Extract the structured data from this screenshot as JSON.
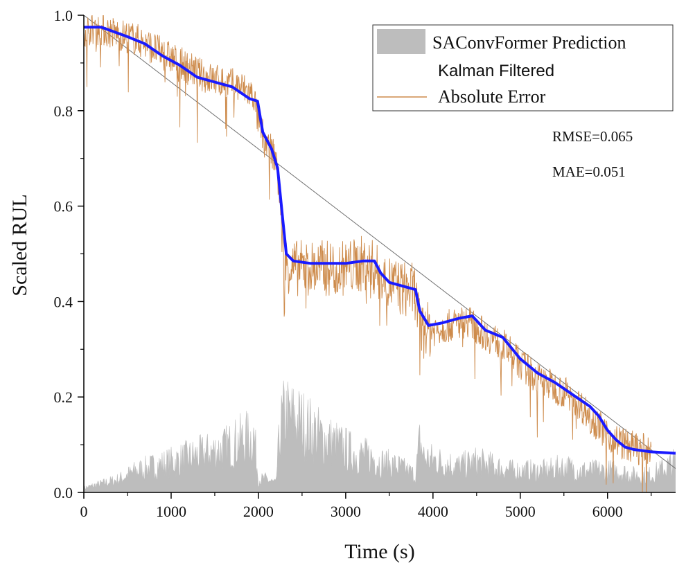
{
  "chart_data": {
    "type": "line",
    "xlabel": "Time (s)",
    "ylabel": "Scaled RUL",
    "xlim": [
      0,
      6780
    ],
    "ylim": [
      0,
      1.0
    ],
    "x_ticks": [
      0,
      1000,
      2000,
      3000,
      4000,
      5000,
      6000
    ],
    "y_ticks": [
      0.0,
      0.2,
      0.4,
      0.6,
      0.8,
      1.0
    ],
    "legend_position": "top-right",
    "colors": {
      "prediction": "#cd8a4a",
      "kalman": "#1a1aff",
      "error": "#bdbdbd",
      "reference": "#707070"
    },
    "annotations": [
      "RMSE=0.065",
      "MAE=0.051"
    ],
    "series": [
      {
        "name": "SAConvFormer Prediction",
        "style": "area",
        "x": [
          0,
          200,
          400,
          600,
          800,
          1000,
          1200,
          1400,
          1600,
          1800,
          1950,
          2000,
          2100,
          2200,
          2250,
          2300,
          2500,
          2700,
          2900,
          3100,
          3300,
          3400,
          3600,
          3800,
          3850,
          3900,
          4100,
          4300,
          4500,
          4700,
          4900,
          5100,
          5300,
          5500,
          5700,
          5900,
          6100,
          6300,
          6500,
          6780
        ],
        "values": [
          0.01,
          0.02,
          0.03,
          0.05,
          0.06,
          0.07,
          0.08,
          0.09,
          0.1,
          0.12,
          0.13,
          0.03,
          0.03,
          0.02,
          0.15,
          0.18,
          0.16,
          0.13,
          0.11,
          0.09,
          0.08,
          0.07,
          0.06,
          0.04,
          0.12,
          0.08,
          0.07,
          0.06,
          0.07,
          0.06,
          0.05,
          0.05,
          0.05,
          0.06,
          0.05,
          0.05,
          0.05,
          0.04,
          0.04,
          0.07
        ]
      },
      {
        "name": "Kalman Filtered",
        "style": "line",
        "x": [
          0,
          200,
          350,
          500,
          700,
          900,
          1100,
          1300,
          1500,
          1700,
          1900,
          1990,
          2050,
          2150,
          2220,
          2280,
          2320,
          2400,
          2600,
          2800,
          3000,
          3200,
          3330,
          3400,
          3500,
          3700,
          3800,
          3850,
          3950,
          4100,
          4300,
          4450,
          4600,
          4800,
          5000,
          5200,
          5400,
          5600,
          5800,
          5900,
          6000,
          6100,
          6200,
          6300,
          6500,
          6780
        ],
        "values": [
          0.975,
          0.975,
          0.965,
          0.955,
          0.94,
          0.915,
          0.895,
          0.87,
          0.86,
          0.85,
          0.825,
          0.82,
          0.755,
          0.72,
          0.68,
          0.57,
          0.5,
          0.485,
          0.48,
          0.48,
          0.48,
          0.485,
          0.485,
          0.46,
          0.44,
          0.43,
          0.425,
          0.38,
          0.35,
          0.355,
          0.365,
          0.37,
          0.34,
          0.325,
          0.28,
          0.25,
          0.23,
          0.205,
          0.18,
          0.16,
          0.13,
          0.11,
          0.095,
          0.09,
          0.085,
          0.082
        ]
      },
      {
        "name": "Absolute Error",
        "style": "noisy-line",
        "x": [
          0,
          200,
          400,
          600,
          800,
          1000,
          1200,
          1400,
          1600,
          1800,
          1950,
          2000,
          2100,
          2200,
          2250,
          2300,
          2400,
          2600,
          2800,
          3000,
          3200,
          3330,
          3400,
          3600,
          3800,
          3850,
          4000,
          4200,
          4400,
          4600,
          4800,
          5000,
          5200,
          5400,
          5600,
          5800,
          6000,
          6200,
          6400,
          6500
        ],
        "values": [
          0.97,
          0.97,
          0.96,
          0.95,
          0.93,
          0.91,
          0.89,
          0.87,
          0.86,
          0.85,
          0.83,
          0.77,
          0.73,
          0.7,
          0.6,
          0.48,
          0.47,
          0.47,
          0.47,
          0.47,
          0.48,
          0.47,
          0.45,
          0.43,
          0.42,
          0.34,
          0.34,
          0.35,
          0.36,
          0.33,
          0.31,
          0.27,
          0.24,
          0.22,
          0.2,
          0.16,
          0.12,
          0.1,
          0.09,
          0.09
        ]
      }
    ]
  }
}
